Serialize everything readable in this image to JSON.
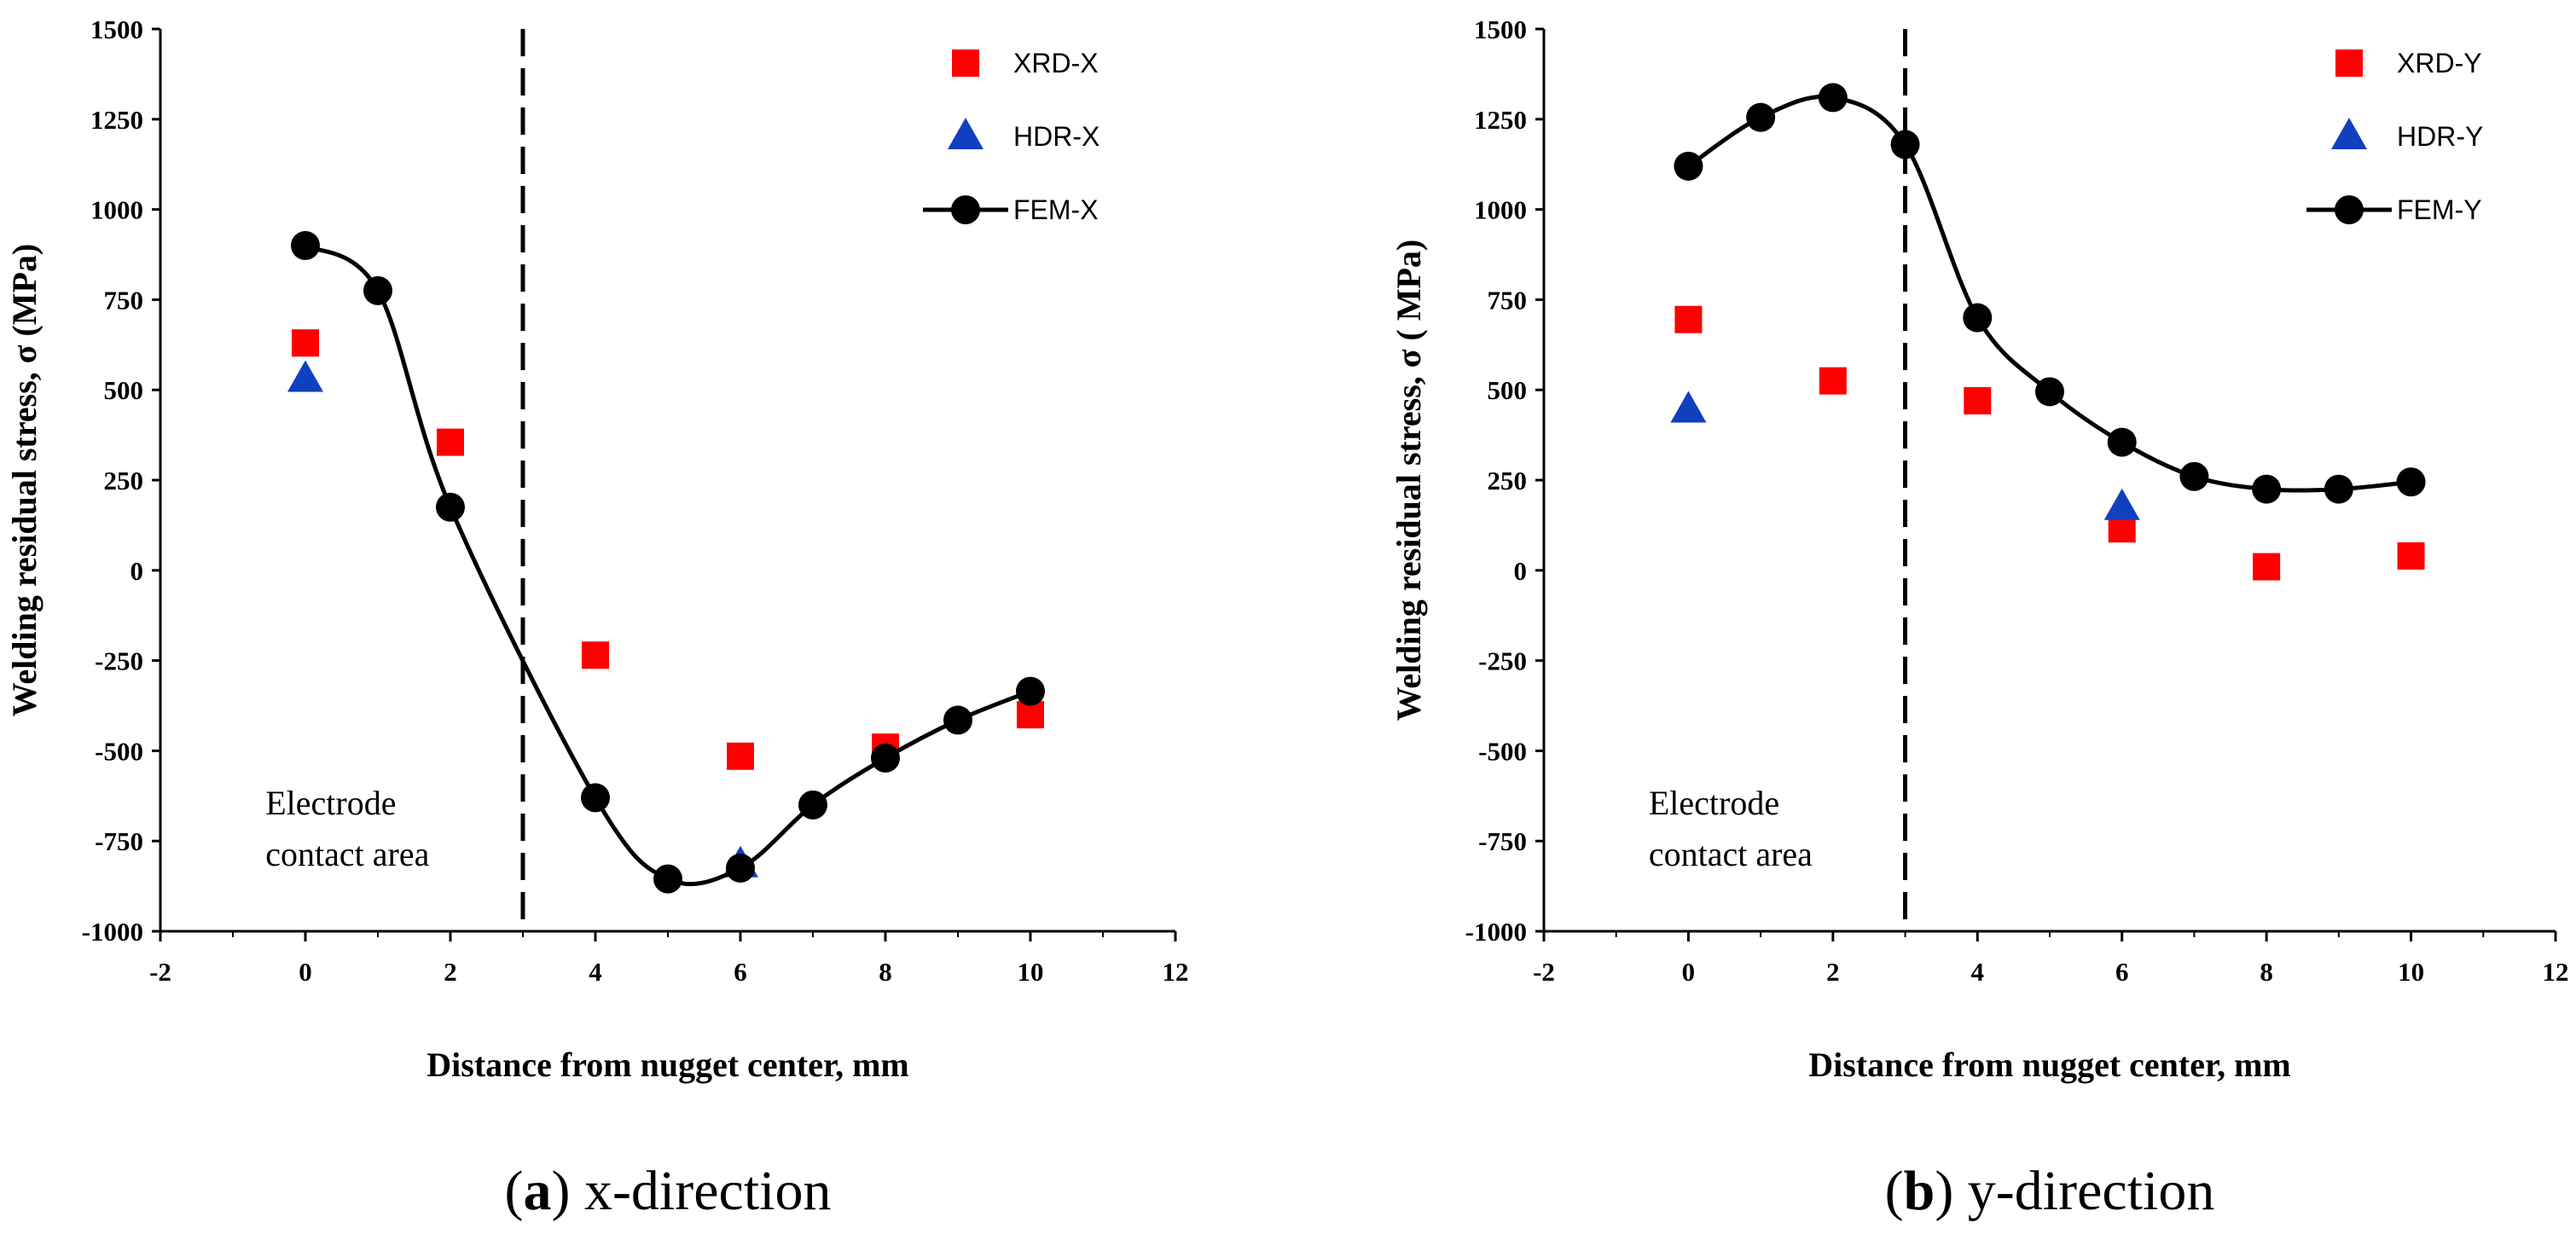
{
  "figure": {
    "panels": [
      {
        "caption_letter": "a",
        "caption_text": " x-direction",
        "region_label_line1": "Electrode",
        "region_label_line2": "contact area"
      },
      {
        "caption_letter": "b",
        "caption_text": " y-direction",
        "region_label_line1": "Electrode",
        "region_label_line2": "contact area"
      }
    ]
  },
  "chart_data": [
    {
      "type": "scatter",
      "title": "",
      "xlabel": "Distance from nugget center, mm",
      "ylabel": "Welding residual stress, σ (MPa)",
      "xlim": [
        -2,
        12
      ],
      "ylim": [
        -1000,
        1500
      ],
      "xticks": [
        -2,
        0,
        2,
        4,
        6,
        8,
        10,
        12
      ],
      "yticks": [
        -1000,
        -750,
        -500,
        -250,
        0,
        250,
        500,
        750,
        1000,
        1250,
        1500
      ],
      "divider_x": 3,
      "legend_position": "top-right",
      "series": [
        {
          "name": "XRD-X",
          "marker": "square",
          "color": "#ff0000",
          "x": [
            0,
            2,
            4,
            6,
            8,
            10
          ],
          "y": [
            630,
            355,
            -235,
            -515,
            -490,
            -400
          ]
        },
        {
          "name": "HDR-X",
          "marker": "triangle",
          "color": "#1040c0",
          "x": [
            0,
            6
          ],
          "y": [
            530,
            -815
          ]
        },
        {
          "name": "FEM-X",
          "marker": "circle-line",
          "color": "#000000",
          "x": [
            0,
            1,
            2,
            4,
            5,
            6,
            7,
            8,
            9,
            10
          ],
          "y": [
            900,
            775,
            175,
            -630,
            -855,
            -825,
            -650,
            -520,
            -415,
            -335
          ]
        }
      ]
    },
    {
      "type": "scatter",
      "title": "",
      "xlabel": "Distance from nugget center, mm",
      "ylabel": "Welding residual stress, σ ( MPa)",
      "xlim": [
        -2,
        12
      ],
      "ylim": [
        -1000,
        1500
      ],
      "xticks": [
        -2,
        0,
        2,
        4,
        6,
        8,
        10,
        12
      ],
      "yticks": [
        -1000,
        -750,
        -500,
        -250,
        0,
        250,
        500,
        750,
        1000,
        1250,
        1500
      ],
      "divider_x": 3,
      "legend_position": "top-right",
      "series": [
        {
          "name": "XRD-Y",
          "marker": "square",
          "color": "#ff0000",
          "x": [
            0,
            2,
            4,
            6,
            8,
            10
          ],
          "y": [
            695,
            525,
            470,
            115,
            10,
            40
          ]
        },
        {
          "name": "HDR-Y",
          "marker": "triangle",
          "color": "#1040c0",
          "x": [
            0,
            6
          ],
          "y": [
            445,
            175
          ]
        },
        {
          "name": "FEM-Y",
          "marker": "circle-line",
          "color": "#000000",
          "x": [
            0,
            1,
            2,
            3,
            4,
            5,
            6,
            7,
            8,
            9,
            10
          ],
          "y": [
            1120,
            1255,
            1310,
            1180,
            700,
            495,
            355,
            260,
            225,
            225,
            245
          ]
        }
      ]
    }
  ]
}
